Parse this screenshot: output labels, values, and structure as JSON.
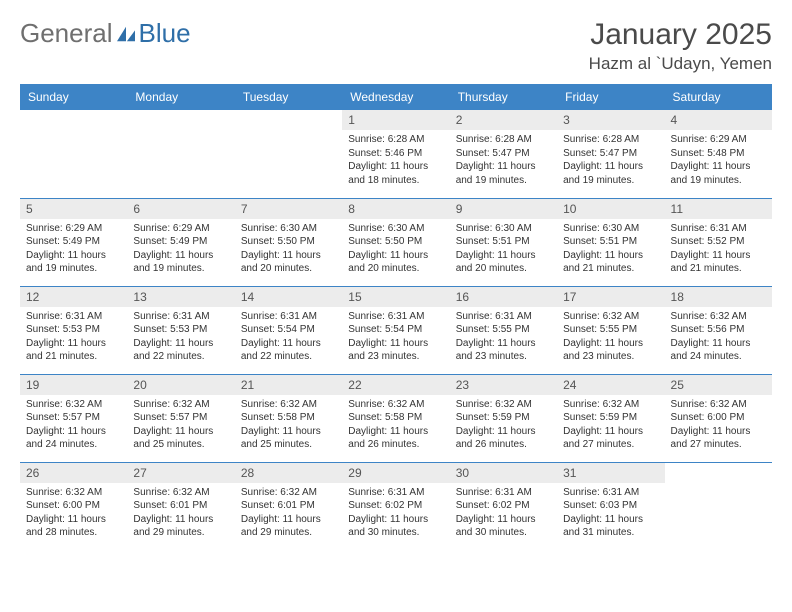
{
  "logo": {
    "word1": "General",
    "word2": "Blue"
  },
  "title": "January 2025",
  "location": "Hazm al `Udayn, Yemen",
  "colors": {
    "header_bg": "#3d84c6",
    "header_text": "#ffffff",
    "daynum_bg": "#ececec",
    "border": "#3d84c6",
    "logo_gray": "#6f6f6f",
    "logo_blue": "#2f6fa8",
    "text": "#333333",
    "background": "#ffffff"
  },
  "weekdays": [
    "Sunday",
    "Monday",
    "Tuesday",
    "Wednesday",
    "Thursday",
    "Friday",
    "Saturday"
  ],
  "weeks": [
    [
      {
        "empty": true
      },
      {
        "empty": true
      },
      {
        "empty": true
      },
      {
        "n": "1",
        "sr": "6:28 AM",
        "ss": "5:46 PM",
        "dl": "11 hours and 18 minutes."
      },
      {
        "n": "2",
        "sr": "6:28 AM",
        "ss": "5:47 PM",
        "dl": "11 hours and 19 minutes."
      },
      {
        "n": "3",
        "sr": "6:28 AM",
        "ss": "5:47 PM",
        "dl": "11 hours and 19 minutes."
      },
      {
        "n": "4",
        "sr": "6:29 AM",
        "ss": "5:48 PM",
        "dl": "11 hours and 19 minutes."
      }
    ],
    [
      {
        "n": "5",
        "sr": "6:29 AM",
        "ss": "5:49 PM",
        "dl": "11 hours and 19 minutes."
      },
      {
        "n": "6",
        "sr": "6:29 AM",
        "ss": "5:49 PM",
        "dl": "11 hours and 19 minutes."
      },
      {
        "n": "7",
        "sr": "6:30 AM",
        "ss": "5:50 PM",
        "dl": "11 hours and 20 minutes."
      },
      {
        "n": "8",
        "sr": "6:30 AM",
        "ss": "5:50 PM",
        "dl": "11 hours and 20 minutes."
      },
      {
        "n": "9",
        "sr": "6:30 AM",
        "ss": "5:51 PM",
        "dl": "11 hours and 20 minutes."
      },
      {
        "n": "10",
        "sr": "6:30 AM",
        "ss": "5:51 PM",
        "dl": "11 hours and 21 minutes."
      },
      {
        "n": "11",
        "sr": "6:31 AM",
        "ss": "5:52 PM",
        "dl": "11 hours and 21 minutes."
      }
    ],
    [
      {
        "n": "12",
        "sr": "6:31 AM",
        "ss": "5:53 PM",
        "dl": "11 hours and 21 minutes."
      },
      {
        "n": "13",
        "sr": "6:31 AM",
        "ss": "5:53 PM",
        "dl": "11 hours and 22 minutes."
      },
      {
        "n": "14",
        "sr": "6:31 AM",
        "ss": "5:54 PM",
        "dl": "11 hours and 22 minutes."
      },
      {
        "n": "15",
        "sr": "6:31 AM",
        "ss": "5:54 PM",
        "dl": "11 hours and 23 minutes."
      },
      {
        "n": "16",
        "sr": "6:31 AM",
        "ss": "5:55 PM",
        "dl": "11 hours and 23 minutes."
      },
      {
        "n": "17",
        "sr": "6:32 AM",
        "ss": "5:55 PM",
        "dl": "11 hours and 23 minutes."
      },
      {
        "n": "18",
        "sr": "6:32 AM",
        "ss": "5:56 PM",
        "dl": "11 hours and 24 minutes."
      }
    ],
    [
      {
        "n": "19",
        "sr": "6:32 AM",
        "ss": "5:57 PM",
        "dl": "11 hours and 24 minutes."
      },
      {
        "n": "20",
        "sr": "6:32 AM",
        "ss": "5:57 PM",
        "dl": "11 hours and 25 minutes."
      },
      {
        "n": "21",
        "sr": "6:32 AM",
        "ss": "5:58 PM",
        "dl": "11 hours and 25 minutes."
      },
      {
        "n": "22",
        "sr": "6:32 AM",
        "ss": "5:58 PM",
        "dl": "11 hours and 26 minutes."
      },
      {
        "n": "23",
        "sr": "6:32 AM",
        "ss": "5:59 PM",
        "dl": "11 hours and 26 minutes."
      },
      {
        "n": "24",
        "sr": "6:32 AM",
        "ss": "5:59 PM",
        "dl": "11 hours and 27 minutes."
      },
      {
        "n": "25",
        "sr": "6:32 AM",
        "ss": "6:00 PM",
        "dl": "11 hours and 27 minutes."
      }
    ],
    [
      {
        "n": "26",
        "sr": "6:32 AM",
        "ss": "6:00 PM",
        "dl": "11 hours and 28 minutes."
      },
      {
        "n": "27",
        "sr": "6:32 AM",
        "ss": "6:01 PM",
        "dl": "11 hours and 29 minutes."
      },
      {
        "n": "28",
        "sr": "6:32 AM",
        "ss": "6:01 PM",
        "dl": "11 hours and 29 minutes."
      },
      {
        "n": "29",
        "sr": "6:31 AM",
        "ss": "6:02 PM",
        "dl": "11 hours and 30 minutes."
      },
      {
        "n": "30",
        "sr": "6:31 AM",
        "ss": "6:02 PM",
        "dl": "11 hours and 30 minutes."
      },
      {
        "n": "31",
        "sr": "6:31 AM",
        "ss": "6:03 PM",
        "dl": "11 hours and 31 minutes."
      },
      {
        "empty": true
      }
    ]
  ],
  "labels": {
    "sunrise": "Sunrise:",
    "sunset": "Sunset:",
    "daylight": "Daylight:"
  }
}
